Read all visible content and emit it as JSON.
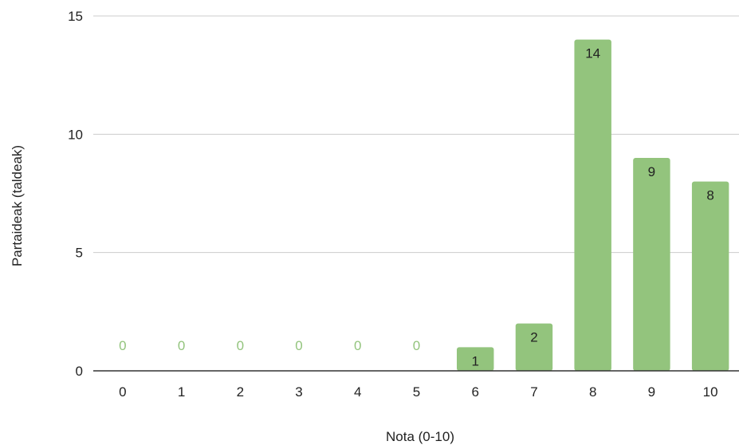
{
  "chart_data": {
    "type": "bar",
    "categories": [
      "0",
      "1",
      "2",
      "3",
      "4",
      "5",
      "6",
      "7",
      "8",
      "9",
      "10"
    ],
    "values": [
      0,
      0,
      0,
      0,
      0,
      0,
      1,
      2,
      14,
      9,
      8
    ],
    "data_labels": [
      "0",
      "0",
      "0",
      "0",
      "0",
      "0",
      "1",
      "2",
      "14",
      "9",
      "8"
    ],
    "xlabel": "Nota (0-10)",
    "ylabel": "Partaideak (taldeak)",
    "ylim": [
      0,
      15
    ],
    "yticks": [
      "0",
      "5",
      "10",
      "15"
    ],
    "grid": true,
    "legend": "none",
    "colors": {
      "bar": "#93c47d",
      "zero_label": "#93c47d",
      "label": "#222222",
      "grid": "#cccccc",
      "baseline": "#333333"
    }
  }
}
